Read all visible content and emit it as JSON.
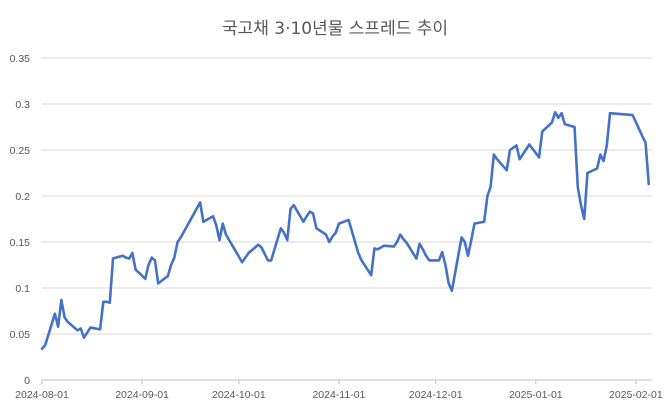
{
  "chart_data": {
    "type": "line",
    "title": "국고채 3·10년물 스프레드 추이",
    "xlabel": "",
    "ylabel": "",
    "ylim": [
      0,
      0.35
    ],
    "y_ticks": [
      "0",
      "0.05",
      "0.1",
      "0.15",
      "0.2",
      "0.25",
      "0.3",
      "0.35"
    ],
    "x_range": [
      "2024-08-01",
      "2025-02-06"
    ],
    "x_ticks": [
      "2024-08-01",
      "2024-09-01",
      "2024-10-01",
      "2024-11-01",
      "2024-12-01",
      "2025-01-01",
      "2025-02-01"
    ],
    "grid": "horizontal",
    "legend": "none",
    "series_color": "#4472c4",
    "series": [
      {
        "x": [
          "2024-08-01",
          "2024-08-02",
          "2024-08-05",
          "2024-08-06",
          "2024-08-07",
          "2024-08-08",
          "2024-08-09",
          "2024-08-12",
          "2024-08-13",
          "2024-08-14",
          "2024-08-16",
          "2024-08-19",
          "2024-08-20",
          "2024-08-21",
          "2024-08-22",
          "2024-08-23",
          "2024-08-26",
          "2024-08-27",
          "2024-08-28",
          "2024-08-29",
          "2024-08-30",
          "2024-09-02",
          "2024-09-03",
          "2024-09-04",
          "2024-09-05",
          "2024-09-06",
          "2024-09-09",
          "2024-09-10",
          "2024-09-11",
          "2024-09-12",
          "2024-09-13",
          "2024-09-19",
          "2024-09-20",
          "2024-09-23",
          "2024-09-24",
          "2024-09-25",
          "2024-09-26",
          "2024-09-27",
          "2024-09-30",
          "2024-10-02",
          "2024-10-04",
          "2024-10-07",
          "2024-10-08",
          "2024-10-10",
          "2024-10-11",
          "2024-10-14",
          "2024-10-15",
          "2024-10-16",
          "2024-10-17",
          "2024-10-18",
          "2024-10-21",
          "2024-10-22",
          "2024-10-23",
          "2024-10-24",
          "2024-10-25",
          "2024-10-28",
          "2024-10-29",
          "2024-10-30",
          "2024-10-31",
          "2024-11-01",
          "2024-11-04",
          "2024-11-05",
          "2024-11-06",
          "2024-11-07",
          "2024-11-08",
          "2024-11-11",
          "2024-11-12",
          "2024-11-13",
          "2024-11-14",
          "2024-11-15",
          "2024-11-18",
          "2024-11-19",
          "2024-11-20",
          "2024-11-21",
          "2024-11-22",
          "2024-11-25",
          "2024-11-26",
          "2024-11-27",
          "2024-11-28",
          "2024-11-29",
          "2024-12-02",
          "2024-12-03",
          "2024-12-04",
          "2024-12-05",
          "2024-12-06",
          "2024-12-09",
          "2024-12-10",
          "2024-12-11",
          "2024-12-12",
          "2024-12-13",
          "2024-12-16",
          "2024-12-17",
          "2024-12-18",
          "2024-12-19",
          "2024-12-20",
          "2024-12-23",
          "2024-12-24",
          "2024-12-26",
          "2024-12-27",
          "2024-12-30",
          "2025-01-02",
          "2025-01-03",
          "2025-01-06",
          "2025-01-07",
          "2025-01-08",
          "2025-01-09",
          "2025-01-10",
          "2025-01-13",
          "2025-01-14",
          "2025-01-15",
          "2025-01-16",
          "2025-01-17",
          "2025-01-20",
          "2025-01-21",
          "2025-01-22",
          "2025-01-23",
          "2025-01-24",
          "2025-01-31",
          "2025-02-03",
          "2025-02-04",
          "2025-02-05"
        ],
        "values": [
          0.034,
          0.038,
          0.072,
          0.058,
          0.087,
          0.068,
          0.063,
          0.054,
          0.056,
          0.046,
          0.057,
          0.055,
          0.085,
          0.085,
          0.084,
          0.132,
          0.135,
          0.133,
          0.132,
          0.138,
          0.12,
          0.11,
          0.125,
          0.133,
          0.13,
          0.105,
          0.113,
          0.125,
          0.133,
          0.15,
          0.155,
          0.193,
          0.172,
          0.178,
          0.168,
          0.152,
          0.17,
          0.158,
          0.14,
          0.128,
          0.138,
          0.147,
          0.144,
          0.13,
          0.13,
          0.165,
          0.16,
          0.152,
          0.186,
          0.19,
          0.172,
          0.178,
          0.183,
          0.181,
          0.165,
          0.158,
          0.15,
          0.156,
          0.16,
          0.17,
          0.174,
          0.162,
          0.15,
          0.138,
          0.13,
          0.114,
          0.143,
          0.142,
          0.144,
          0.146,
          0.145,
          0.15,
          0.158,
          0.153,
          0.149,
          0.132,
          0.148,
          0.142,
          0.135,
          0.13,
          0.13,
          0.139,
          0.125,
          0.105,
          0.097,
          0.155,
          0.15,
          0.135,
          0.152,
          0.17,
          0.172,
          0.2,
          0.21,
          0.245,
          0.24,
          0.228,
          0.25,
          0.255,
          0.24,
          0.256,
          0.242,
          0.27,
          0.28,
          0.291,
          0.285,
          0.29,
          0.278,
          0.275,
          0.21,
          0.19,
          0.175,
          0.225,
          0.23,
          0.245,
          0.238,
          0.255,
          0.29,
          0.288,
          0.265,
          0.258,
          0.213
        ]
      }
    ]
  }
}
